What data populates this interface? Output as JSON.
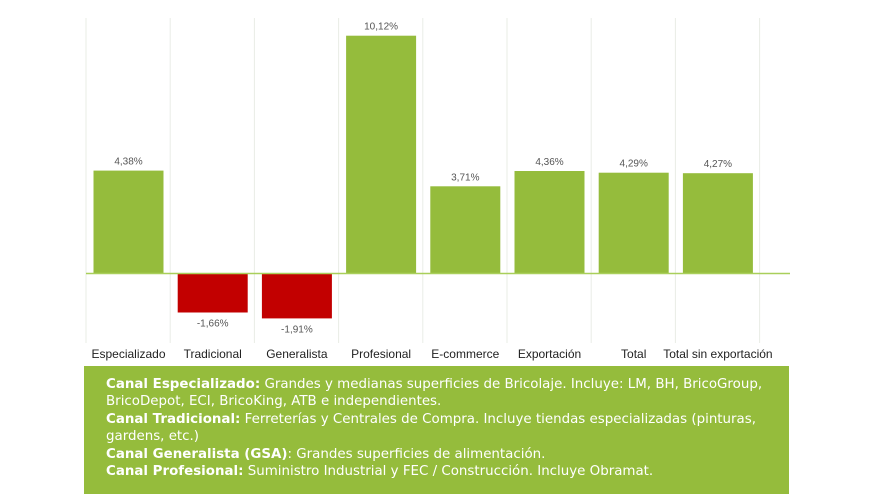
{
  "chart_data": {
    "type": "bar",
    "categories": [
      "Especializado",
      "Tradicional",
      "Generalista",
      "Profesional",
      "E-commerce",
      "Exportación",
      "Total",
      "Total sin exportación"
    ],
    "values": [
      4.38,
      -1.66,
      -1.91,
      10.12,
      3.71,
      4.36,
      4.29,
      4.27
    ],
    "value_labels": [
      "4,38%",
      "-1,66%",
      "-1,91%",
      "10,12%",
      "3,71%",
      "4,36%",
      "4,29%",
      "4,27%"
    ],
    "colors": {
      "positive": "#95bc3c",
      "negative": "#c20000",
      "axis": "#a9cf5a",
      "grid": "#e9ece6"
    },
    "ylim": [
      -3.0,
      10.8
    ]
  },
  "legend": {
    "items": [
      {
        "term": "Canal Especializado:",
        "desc": " Grandes y medianas superficies de Bricolaje. Incluye: LM, BH, BricoGroup, BricoDepot, ECI, BricoKing, ATB e independientes."
      },
      {
        "term": "Canal Tradicional:",
        "desc": " Ferreterías y Centrales de Compra. Incluye tiendas especializadas (pinturas, gardens, etc.)"
      },
      {
        "term": "Canal Generalista (GSA)",
        "desc": ": Grandes superficies de alimentación."
      },
      {
        "term": "Canal Profesional:",
        "desc": " Suministro Industrial y FEC / Construcción. Incluye Obramat."
      }
    ]
  }
}
